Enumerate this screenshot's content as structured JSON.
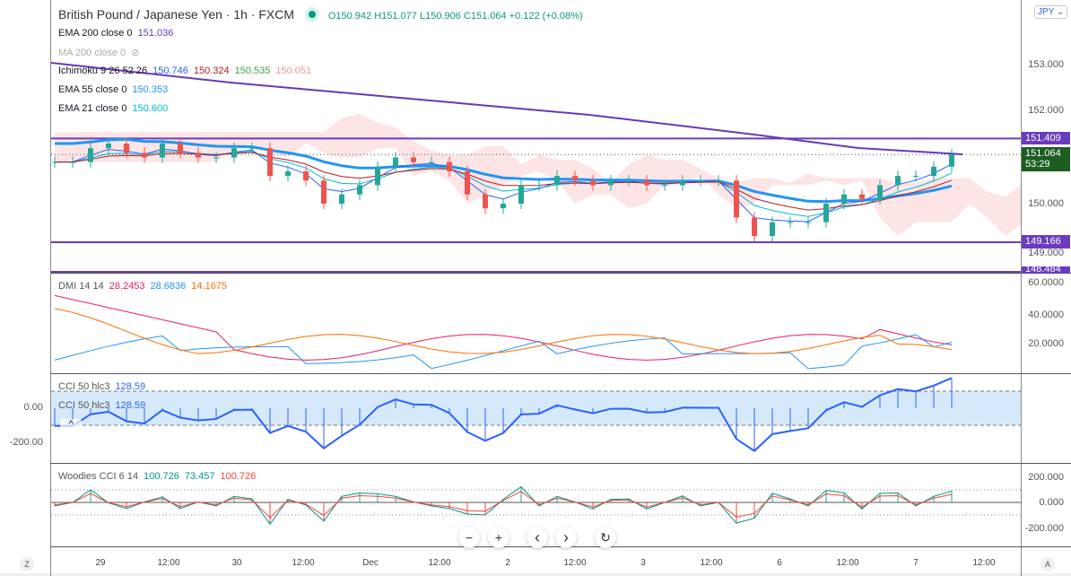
{
  "header": {
    "title": "British Pound / Japanese Yen · 1h · FXCM",
    "ohlc": "O150.942 H151.077 L150.906 C151.064 +0.122 (+0.08%)"
  },
  "legends": {
    "ema200": {
      "label": "EMA 200 close 0",
      "value": "151.036"
    },
    "ma200": {
      "label": "MA 200 close 0"
    },
    "ichimoku": {
      "label": "Ichimoku 9 26 52 26",
      "v1": "150.746",
      "v2": "150.324",
      "v3": "150.535",
      "v4": "150.051"
    },
    "ema55": {
      "label": "EMA 55 close 0",
      "value": "150.353"
    },
    "ema21": {
      "label": "EMA 21 close 0",
      "value": "150.600"
    },
    "dmi": {
      "label": "DMI 14 14",
      "v1": "28.2453",
      "v2": "28.6836",
      "v3": "14.1675"
    },
    "cci": {
      "label": "CCI 50 hlc3",
      "value": "128.59"
    },
    "woodies": {
      "label": "Woodies CCI 6 14",
      "v1": "100.726",
      "v2": "73.457",
      "v3": "100.726"
    }
  },
  "currency": "JPY",
  "price_axis": [
    "153.000",
    "152.000",
    "150.000",
    "149.000"
  ],
  "price_tags": {
    "upper": "151.409",
    "current": "151.064",
    "countdown": "53:29",
    "lower": "149.166",
    "bottom": "148.484"
  },
  "dmi_axis": [
    "60.0000",
    "40.0000",
    "20.0000"
  ],
  "cci_axis": [
    "0.00",
    "-200.00"
  ],
  "woodies_axis": [
    "200.000",
    "0.000",
    "-200.000"
  ],
  "time_axis": [
    "29",
    "12:00",
    "30",
    "12:00",
    "Dec",
    "12:00",
    "2",
    "12:00",
    "3",
    "12:00",
    "6",
    "12:00",
    "7",
    "12:00"
  ],
  "nav": {
    "zoom_out": "−",
    "zoom_in": "+",
    "left": "‹",
    "right": "›",
    "reset": "↻"
  },
  "corner": {
    "left": "Z",
    "right": "A"
  },
  "closes": [
    150.9,
    150.9,
    151.2,
    151.3,
    151.1,
    151.0,
    151.3,
    151.1,
    151.0,
    151.0,
    151.2,
    151.2,
    150.6,
    150.7,
    150.5,
    150.0,
    150.2,
    150.4,
    150.8,
    151.0,
    150.9,
    150.9,
    150.7,
    150.2,
    149.9,
    150.0,
    150.4,
    150.4,
    150.6,
    150.5,
    150.4,
    150.5,
    150.5,
    150.4,
    150.4,
    150.5,
    150.5,
    150.5,
    149.7,
    149.3,
    149.6,
    149.6,
    149.6,
    150.0,
    150.2,
    150.1,
    150.4,
    150.6,
    150.6,
    150.8,
    151.064
  ],
  "colors": {
    "up": "#26a69a",
    "down": "#ef5350",
    "ema200": "#673ab7",
    "level": "#6a3bbf",
    "ema55": "#2196f3",
    "current": "#1b5e20"
  }
}
